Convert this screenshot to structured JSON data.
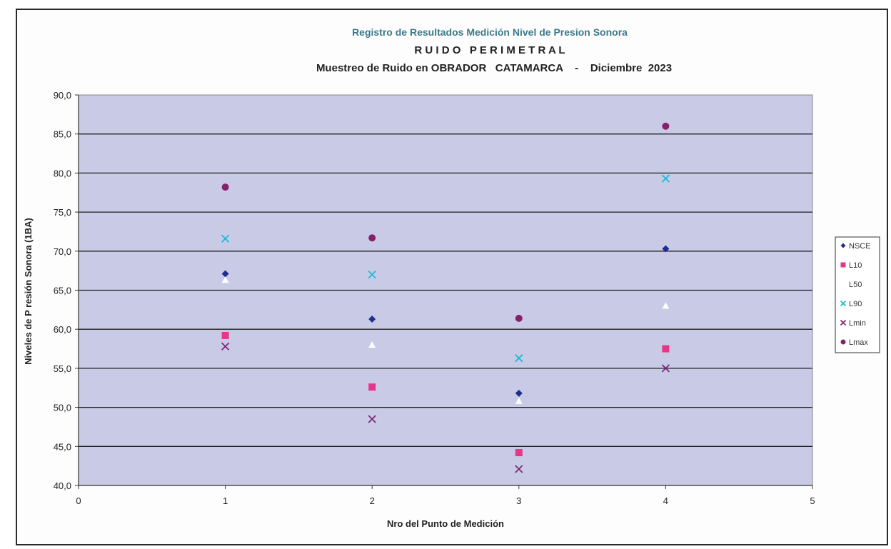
{
  "chart_data": {
    "type": "scatter",
    "title": "Registro de Resultados Medición Nivel de Presion Sonora",
    "subtitle": "R U I D O   P E R I M E T R A L",
    "subtitle2": "Muestreo de Ruido en OBRADOR   CATAMARCA    -    Diciembre  2023",
    "xlabel": "Nro del Punto de Medición",
    "ylabel": "Niveles de P resión Sonora (1BA)",
    "xlim": [
      0,
      5
    ],
    "ylim": [
      40,
      90
    ],
    "x_ticks": [
      "0",
      "1",
      "2",
      "3",
      "4",
      "5"
    ],
    "y_ticks": [
      "40,0",
      "45,0",
      "50,0",
      "55,0",
      "60,0",
      "65,0",
      "70,0",
      "75,0",
      "80,0",
      "85,0",
      "90,0"
    ],
    "grid": true,
    "legend_position": "right",
    "series": [
      {
        "name": "NSCE",
        "marker": "diamond",
        "color": "#1f2e8c",
        "x": [
          1,
          2,
          3,
          4
        ],
        "y": [
          67.1,
          61.3,
          51.8,
          70.3
        ]
      },
      {
        "name": "L10",
        "marker": "square",
        "color": "#e8358a",
        "x": [
          1,
          2,
          3,
          4
        ],
        "y": [
          59.2,
          52.6,
          44.2,
          57.5
        ]
      },
      {
        "name": "L50",
        "marker": "triangle",
        "color": "#ffffff",
        "x": [
          1,
          2,
          3,
          4
        ],
        "y": [
          66.3,
          58.0,
          50.8,
          63.0
        ]
      },
      {
        "name": "L90",
        "marker": "x",
        "color": "#1fb8d6",
        "x": [
          1,
          2,
          3,
          4
        ],
        "y": [
          71.6,
          67.0,
          56.3,
          79.3
        ]
      },
      {
        "name": "Lmin",
        "marker": "x",
        "color": "#7a2a7a",
        "x": [
          1,
          2,
          3,
          4
        ],
        "y": [
          57.8,
          48.5,
          42.1,
          55.0
        ]
      },
      {
        "name": "Lmax",
        "marker": "circle",
        "color": "#8a1e6e",
        "x": [
          1,
          2,
          3,
          4
        ],
        "y": [
          78.2,
          71.7,
          61.4,
          86.0
        ]
      }
    ]
  },
  "colors": {
    "plot_background": "#c9cbe6",
    "gridline": "#1e1e1e",
    "title": "#3b7a8a",
    "frame": "#2a2a2a"
  }
}
